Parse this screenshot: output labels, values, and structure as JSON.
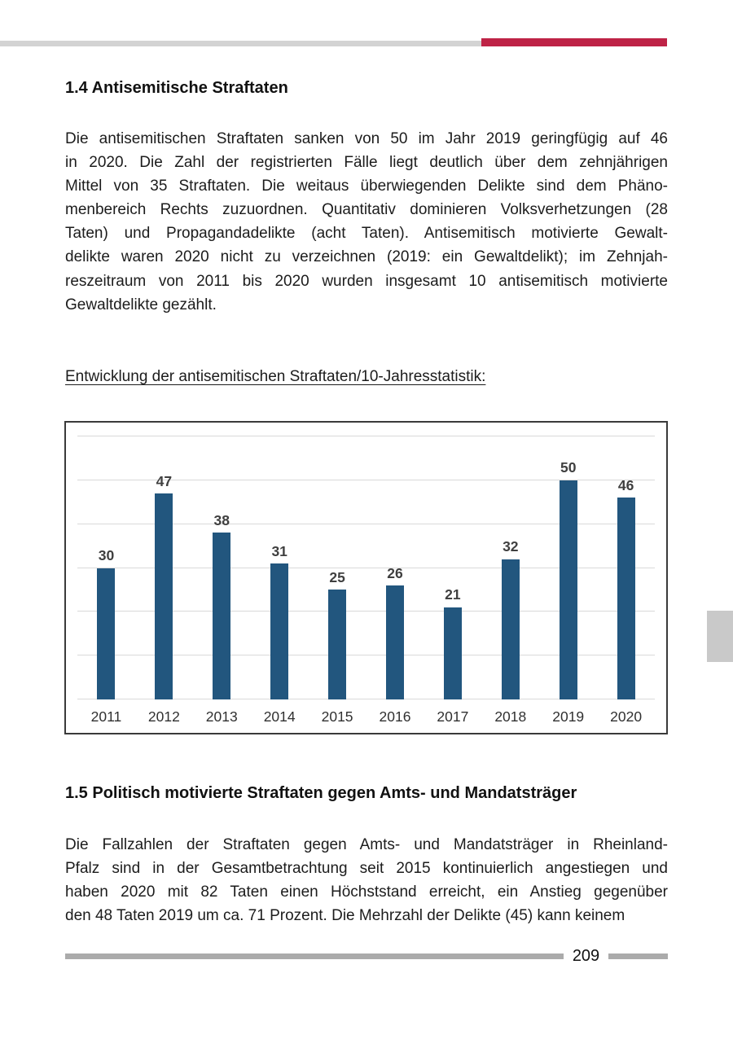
{
  "document": {
    "section_1_4": {
      "heading": "1.4 Antisemitische Straftaten",
      "paragraph_lines": [
        "Die antisemitischen Straftaten sanken von 50 im Jahr 2019 geringfügig auf 46",
        "in 2020. Die Zahl der registrierten Fälle liegt deutlich über dem zehnjährigen",
        "Mittel von 35 Straftaten. Die weitaus überwiegenden Delikte sind dem Phäno-",
        "menbereich Rechts zuzuordnen. Quantitativ dominieren Volksverhetzungen (28",
        "Taten) und Propagandadelikte (acht Taten). Antisemitisch motivierte Gewalt-",
        "delikte waren 2020 nicht zu verzeichnen (2019: ein Gewaltdelikt); im Zehnjah-",
        "reszeitraum von 2011 bis 2020 wurden insgesamt 10 antisemitisch motivierte",
        "Gewaltdelikte gezählt."
      ],
      "chart_caption": "Entwicklung der antisemitischen Straftaten/10-Jahresstatistik:"
    },
    "section_1_5": {
      "heading": "1.5 Politisch motivierte Straftaten gegen Amts- und Mandatsträger",
      "paragraph_lines": [
        "Die Fallzahlen der Straftaten gegen Amts- und Mandatsträger in Rheinland-",
        "Pfalz sind in der Gesamtbetrachtung seit 2015 kontinuierlich angestiegen und",
        "haben 2020 mit 82 Taten einen Höchststand erreicht, ein Anstieg gegenüber",
        "den 48 Taten 2019 um ca. 71 Prozent. Die Mehrzahl der Delikte (45) kann keinem"
      ]
    },
    "footer": {
      "page_number": "209"
    },
    "colors": {
      "header_accent_red": "#be2346",
      "header_gray": "#d3d3d3",
      "footer_gray": "#ababab",
      "side_tab_gray": "#c9c9c9"
    }
  },
  "chart_data": {
    "type": "bar",
    "title": "",
    "xlabel": "",
    "ylabel": "",
    "categories": [
      "2011",
      "2012",
      "2013",
      "2014",
      "2015",
      "2016",
      "2017",
      "2018",
      "2019",
      "2020"
    ],
    "values": [
      30,
      47,
      38,
      31,
      25,
      26,
      21,
      32,
      50,
      46
    ],
    "ylim": [
      0,
      60
    ],
    "gridline_step": 10,
    "grid": true,
    "legend": false,
    "value_labels": true,
    "bar_color": "#22567e",
    "gridline_color": "#d9d9d9"
  }
}
